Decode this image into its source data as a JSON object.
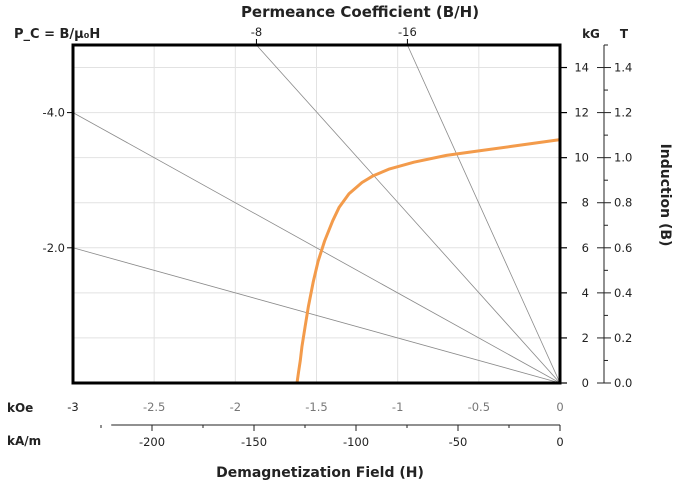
{
  "chart_data": {
    "type": "line",
    "title": "Permeance Coefficient (B/H)",
    "xlabel": "Demagnetization Field (H)",
    "ylabel": "Induction (B)",
    "left_axis_label": "P_C = B/μ₀H",
    "x_kOe": {
      "unit": "kOe",
      "range": [
        -3,
        0
      ],
      "ticks": [
        "-3",
        "-2.5",
        "-2",
        "-1.5",
        "-1",
        "-0.5",
        "0"
      ]
    },
    "x_kAm": {
      "unit": "kA/m",
      "ticks": [
        "-200",
        "-150",
        "-100",
        "-50",
        "0"
      ],
      "tick_values": [
        -200,
        -150,
        -100,
        -50,
        0
      ]
    },
    "y_kG": {
      "unit": "kG",
      "range": [
        0,
        15
      ],
      "ticks": [
        "0",
        "2",
        "4",
        "6",
        "8",
        "10",
        "12",
        "14"
      ]
    },
    "y_T": {
      "unit": "T",
      "ticks": [
        "0.0",
        "0.2",
        "0.4",
        "0.6",
        "0.8",
        "1.0",
        "1.2",
        "1.4"
      ],
      "tick_values": [
        0,
        0.2,
        0.4,
        0.6,
        0.8,
        1.0,
        1.2,
        1.4
      ]
    },
    "left_ticks": [
      {
        "label": "-4.0",
        "value": 12
      },
      {
        "label": "-2.0",
        "value": 6
      }
    ],
    "top_ticks": [
      {
        "label": "-8",
        "value": -1.87
      },
      {
        "label": "-16",
        "value": -0.94
      }
    ],
    "load_lines": [
      {
        "x_at_top": -1.87
      },
      {
        "x_at_top": -0.94
      },
      {
        "x_at_left": -3,
        "y_at_left": 12
      },
      {
        "x_at_left": -3,
        "y_at_left": 6
      }
    ],
    "grid": true,
    "series": [
      {
        "color": "#f39b4b",
        "points": [
          [
            -1.62,
            0
          ],
          [
            -1.61,
            0.5
          ],
          [
            -1.6,
            1.0
          ],
          [
            -1.59,
            1.6
          ],
          [
            -1.57,
            2.5
          ],
          [
            -1.55,
            3.4
          ],
          [
            -1.52,
            4.5
          ],
          [
            -1.49,
            5.4
          ],
          [
            -1.45,
            6.3
          ],
          [
            -1.4,
            7.2
          ],
          [
            -1.36,
            7.8
          ],
          [
            -1.3,
            8.4
          ],
          [
            -1.22,
            8.9
          ],
          [
            -1.15,
            9.2
          ],
          [
            -1.05,
            9.5
          ],
          [
            -0.9,
            9.8
          ],
          [
            -0.7,
            10.1
          ],
          [
            -0.5,
            10.3
          ],
          [
            -0.3,
            10.5
          ],
          [
            -0.15,
            10.65
          ],
          [
            0,
            10.8
          ]
        ]
      }
    ]
  }
}
